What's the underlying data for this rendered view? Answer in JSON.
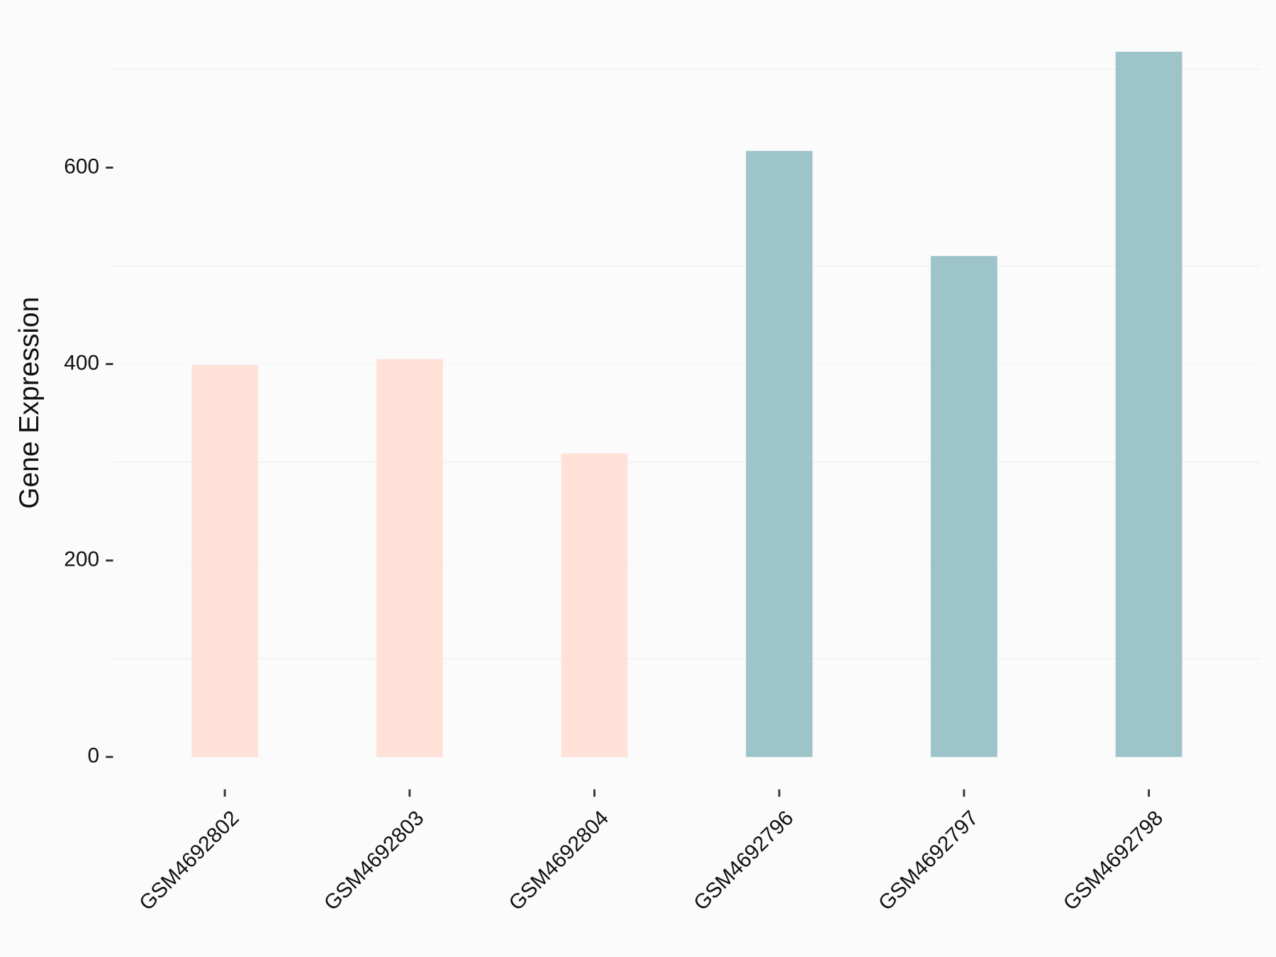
{
  "chart_data": {
    "type": "bar",
    "y_label": "Gene Expression",
    "categories": [
      "GSM4692802",
      "GSM4692803",
      "GSM4692804",
      "GSM4692796",
      "GSM4692797",
      "GSM4692798"
    ],
    "values": [
      399,
      405,
      309,
      617,
      510,
      718
    ],
    "colors": [
      "#ffe1d8",
      "#ffe1d8",
      "#ffe1d8",
      "#9dc4c8",
      "#9dc4c8",
      "#9dc4c8"
    ],
    "ylim": [
      -33,
      740
    ],
    "yticks": [
      0,
      200,
      400,
      600
    ],
    "minor_grid": [
      100,
      300,
      500,
      700
    ],
    "grid": true
  }
}
